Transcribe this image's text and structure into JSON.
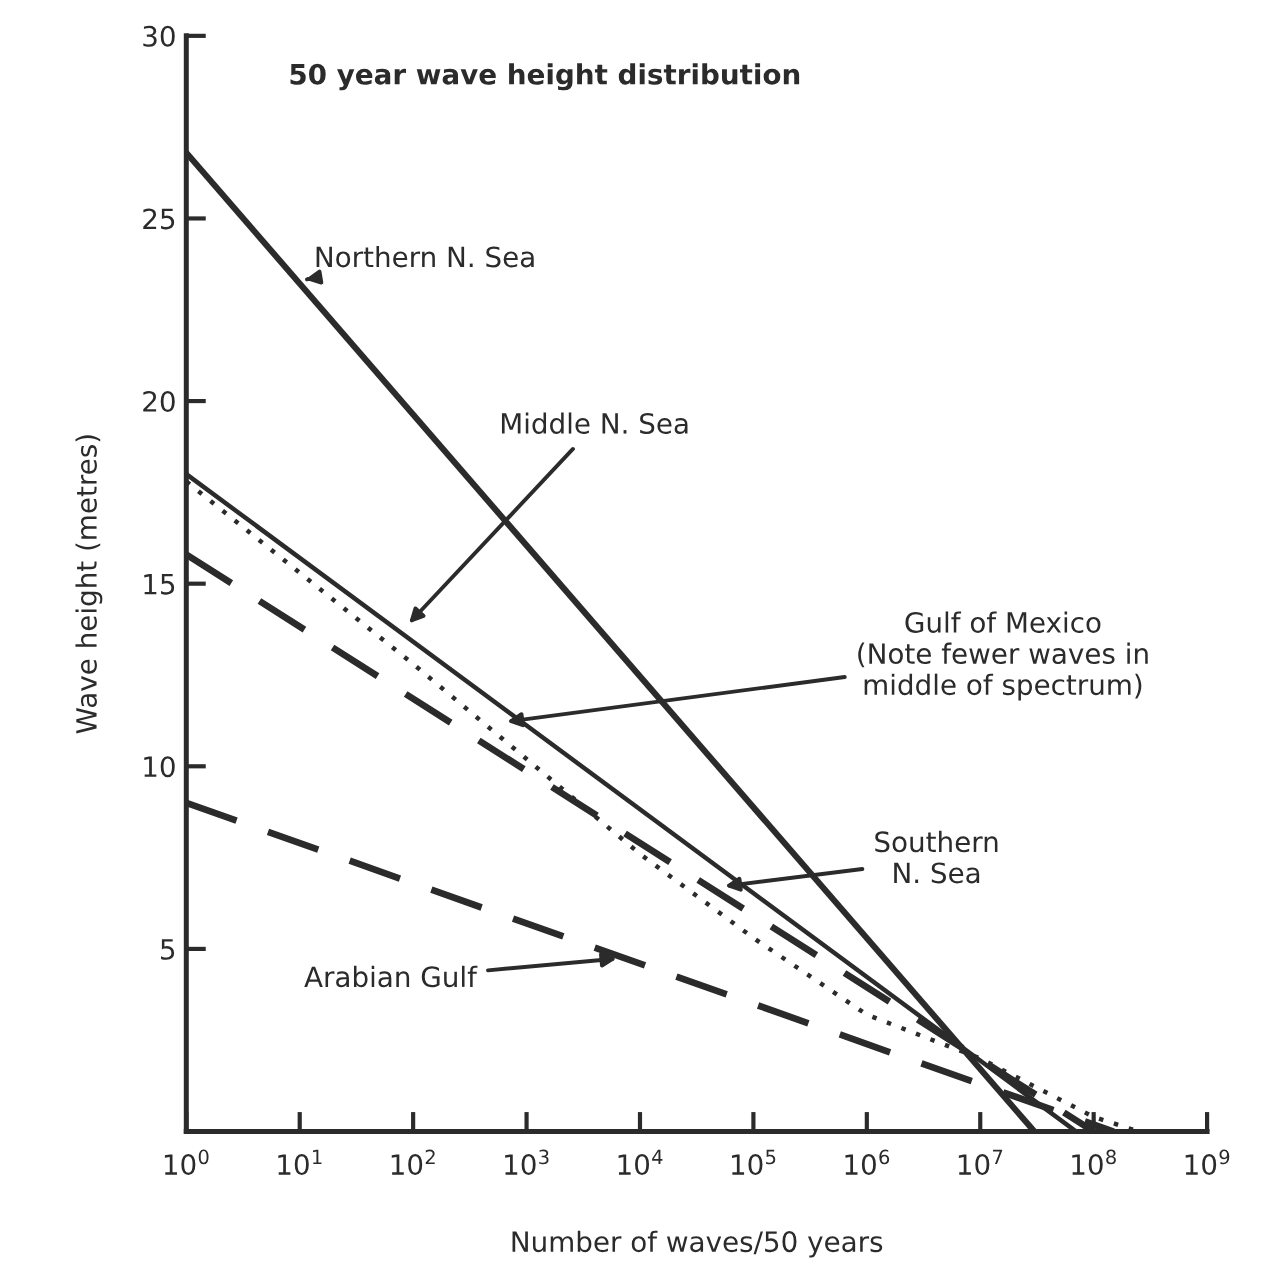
{
  "chart_data": {
    "type": "line",
    "title": "50 year wave height distribution",
    "xlabel": "Number of waves/50 years",
    "ylabel": "Wave height (metres)",
    "log": "x",
    "xlim": [
      1,
      1000000000
    ],
    "ylim": [
      0,
      30
    ],
    "xticks": [
      {
        "value": 1,
        "label": "10$^{0}$"
      },
      {
        "value": 10,
        "label": "10$^{1}$"
      },
      {
        "value": 100,
        "label": "10$^{2}$"
      },
      {
        "value": 1000,
        "label": "10$^{3}$"
      },
      {
        "value": 10000,
        "label": "10$^{4}$"
      },
      {
        "value": 100000,
        "label": "10$^{5}$"
      },
      {
        "value": 1000000,
        "label": "10$^{6}$"
      },
      {
        "value": 10000000,
        "label": "10$^{7}$"
      },
      {
        "value": 100000000,
        "label": "10$^{8}$"
      },
      {
        "value": 1000000000,
        "label": "10$^{9}$"
      }
    ],
    "yticks": [
      5,
      10,
      15,
      20,
      25,
      30
    ],
    "grid": false,
    "legend": false,
    "series": [
      {
        "color": "#2b2b2b",
        "line_style": "solid",
        "x": [
          1,
          30000000
        ],
        "values": [
          26.8,
          0
        ]
      },
      {
        "color": "#2b2b2b",
        "line_style": "solid",
        "x": [
          1,
          70000000
        ],
        "values": [
          18,
          0
        ]
      },
      {
        "color": "#2b2b2b",
        "line_style": "dotted",
        "x": [
          1,
          100,
          10000,
          100000,
          1000000,
          10000000,
          100000000,
          250000000
        ],
        "values": [
          17.8,
          12.8,
          7.6,
          5.3,
          3.2,
          2.0,
          0.4,
          0
        ]
      },
      {
        "color": "#2b2b2b",
        "line_style": "dashed",
        "x": [
          1,
          100000000
        ],
        "values": [
          15.8,
          0
        ]
      },
      {
        "color": "#2b2b2b",
        "line_style": "dashed",
        "x": [
          1,
          150000000
        ],
        "values": [
          9,
          0
        ]
      }
    ],
    "annotations": [
      {
        "text": "Northern N. Sea",
        "x": 10,
        "y": 23.3
      },
      {
        "text": "Middle N. Sea",
        "x": 85,
        "y": 13.8
      },
      {
        "text": "Gulf of Mexico\n(Note fewer waves in\nmiddle of spectrum)",
        "x": 600,
        "y": 11.2
      },
      {
        "text": "Southern\nN. Sea",
        "x": 50000,
        "y": 6.7
      },
      {
        "text": "Arabian Gulf",
        "x": 7000,
        "y": 4.75
      }
    ]
  }
}
